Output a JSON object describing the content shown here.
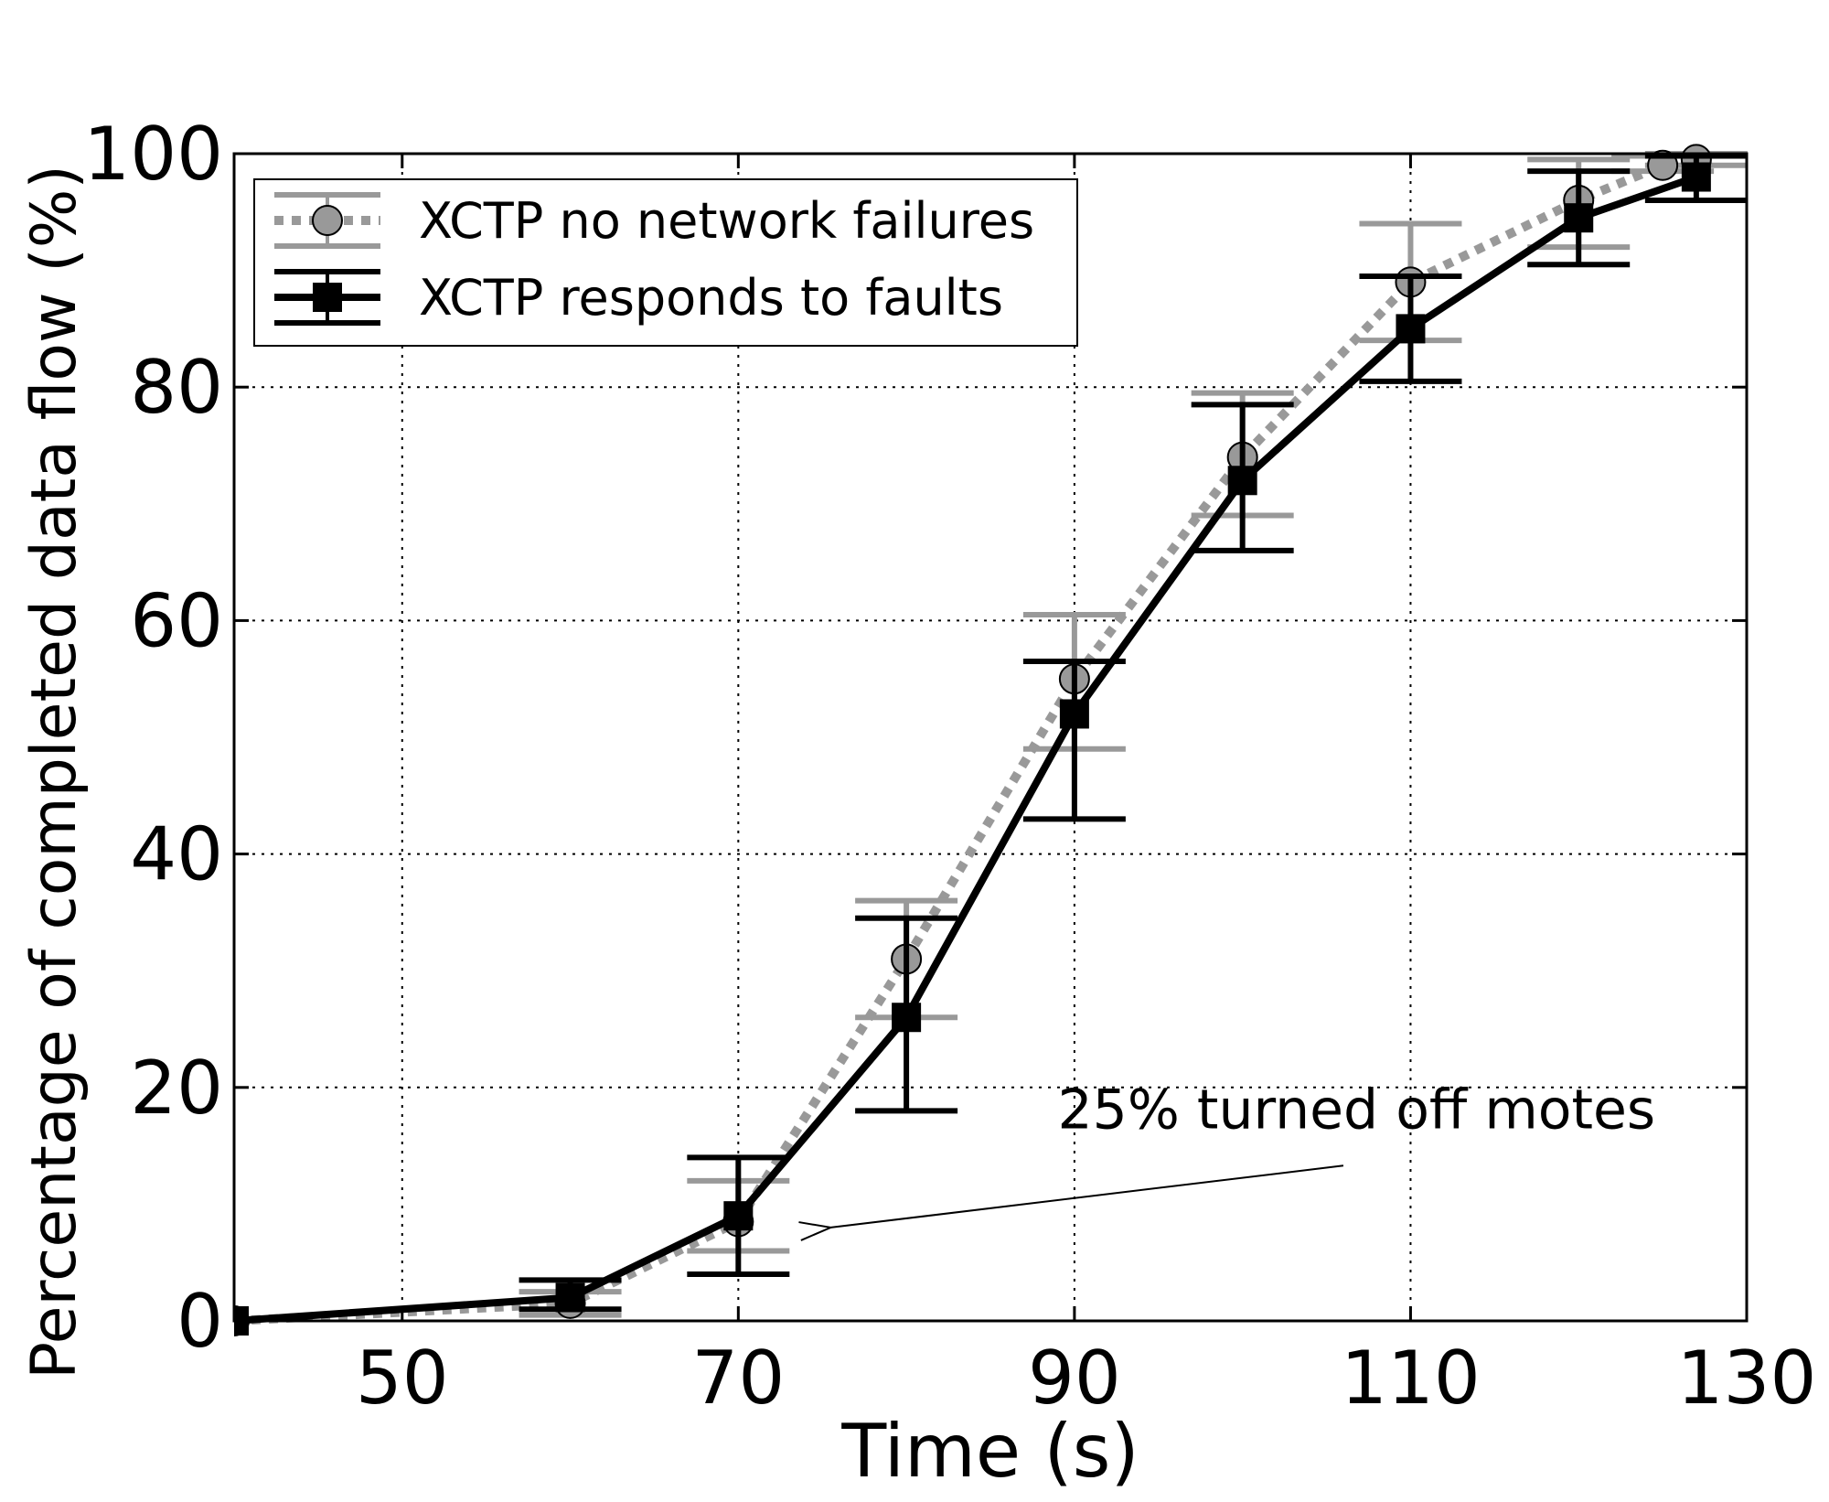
{
  "chart_data": {
    "type": "line",
    "title": "",
    "xlabel": "Time (s)",
    "ylabel": "Percentage of completed data flow (%)",
    "xlim": [
      40,
      130
    ],
    "ylim": [
      0,
      100
    ],
    "xticks": [
      50,
      70,
      90,
      110,
      130
    ],
    "yticks": [
      0,
      20,
      40,
      60,
      80,
      100
    ],
    "xtick_labels": [
      "50",
      "70",
      "90",
      "110",
      "130"
    ],
    "ytick_labels": [
      "0",
      "20",
      "40",
      "60",
      "80",
      "100"
    ],
    "grid": true,
    "legend_position": "top-left",
    "series": [
      {
        "name": "XCTP no network failures",
        "color": "#999999",
        "line_style": "dotted",
        "marker": "circle",
        "x": [
          40,
          60,
          70,
          80,
          90,
          100,
          110,
          120,
          125,
          127
        ],
        "y": [
          0,
          1.5,
          8.5,
          31,
          55,
          74,
          89,
          96,
          99,
          99.5
        ],
        "err_low": [
          0,
          0.5,
          6,
          26,
          49,
          69,
          84,
          92,
          98.5,
          99
        ],
        "err_high": [
          0,
          2.5,
          12,
          36,
          60.5,
          79.5,
          94,
          99.5,
          99.8,
          100
        ]
      },
      {
        "name": "XCTP responds to faults",
        "color": "#000000",
        "line_style": "solid",
        "marker": "square",
        "x": [
          40,
          60,
          70,
          80,
          90,
          100,
          110,
          120,
          127
        ],
        "y": [
          0,
          2,
          9,
          26,
          52,
          72,
          85,
          94.5,
          98
        ],
        "err_low": [
          0,
          1,
          4,
          18,
          43,
          66,
          80.5,
          90.5,
          96
        ],
        "err_high": [
          0,
          3.5,
          14,
          34.5,
          56.5,
          78.5,
          89.5,
          98.5,
          99.8
        ]
      }
    ],
    "annotations": [
      {
        "text": "25% turned off motes",
        "text_x": 89,
        "text_y": 16.5,
        "arrow_from_x": 106,
        "arrow_from_y": 13.3,
        "arrow_to_x": 75.5,
        "arrow_to_y": 8
      }
    ]
  }
}
